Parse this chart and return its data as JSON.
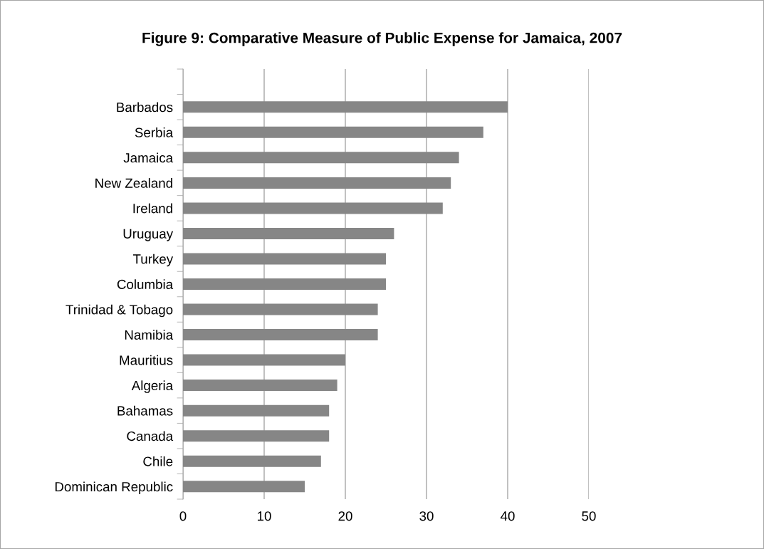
{
  "chart_data": {
    "type": "bar",
    "orientation": "horizontal",
    "title": "Figure 9: Comparative Measure of Public Expense for Jamaica, 2007",
    "categories": [
      "Barbados",
      "Serbia",
      "Jamaica",
      "New Zealand",
      "Ireland",
      "Uruguay",
      "Turkey",
      "Columbia",
      "Trinidad & Tobago",
      "Namibia",
      "Mauritius",
      "Algeria",
      "Bahamas",
      "Canada",
      "Chile",
      "Dominican Republic"
    ],
    "values": [
      40,
      37,
      34,
      33,
      32,
      26,
      25,
      25,
      24,
      24,
      20,
      19,
      18,
      18,
      17,
      15
    ],
    "color": "#868686",
    "xlim": [
      0,
      50
    ],
    "xticks": [
      0,
      10,
      20,
      30,
      40,
      50
    ],
    "grid": "x"
  }
}
